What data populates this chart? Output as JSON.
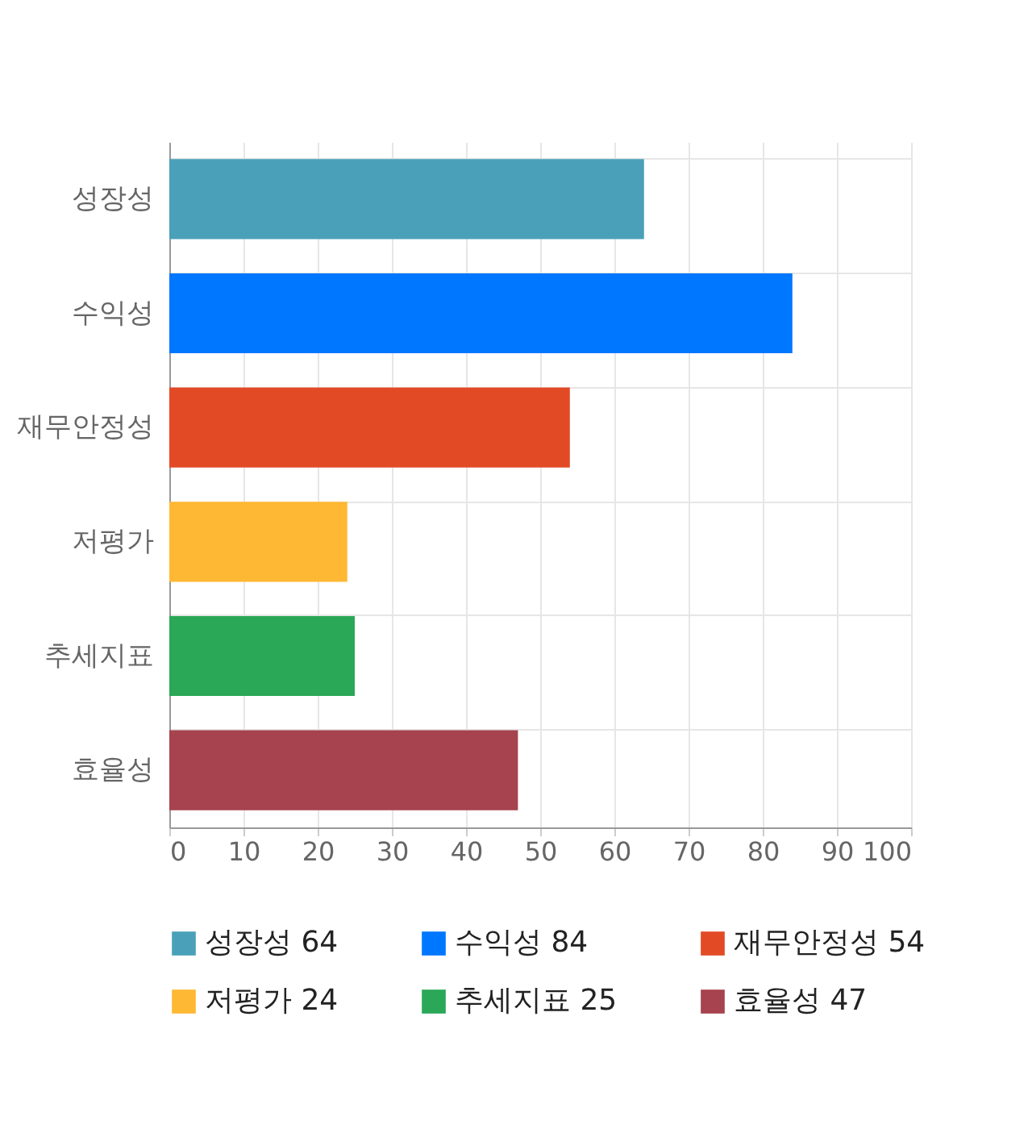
{
  "chart_data": {
    "type": "bar",
    "orientation": "horizontal",
    "stacked": true,
    "categories": [
      "성장성",
      "수익성",
      "재무안정성",
      "저평가",
      "추세지표",
      "효율성"
    ],
    "series": [
      {
        "name": "성장성 64",
        "color": "#4aa0b9",
        "values": [
          64,
          null,
          null,
          null,
          null,
          null
        ]
      },
      {
        "name": "수익성 84",
        "color": "#0077ff",
        "values": [
          null,
          84,
          null,
          null,
          null,
          null
        ]
      },
      {
        "name": "재무안정성 54",
        "color": "#e24a25",
        "values": [
          null,
          null,
          54,
          null,
          null,
          null
        ]
      },
      {
        "name": "저평가 24",
        "color": "#ffb834",
        "values": [
          null,
          null,
          null,
          24,
          null,
          null
        ]
      },
      {
        "name": "추세지표 25",
        "color": "#2aa857",
        "values": [
          null,
          null,
          null,
          null,
          25,
          null
        ]
      },
      {
        "name": "효율성 47",
        "color": "#a6434e",
        "values": [
          null,
          null,
          null,
          null,
          null,
          47
        ]
      }
    ],
    "xlim": [
      0,
      100
    ],
    "xticks": [
      0,
      10,
      20,
      30,
      40,
      50,
      60,
      70,
      80,
      90,
      100
    ],
    "grid": true,
    "legend": "bottom"
  }
}
